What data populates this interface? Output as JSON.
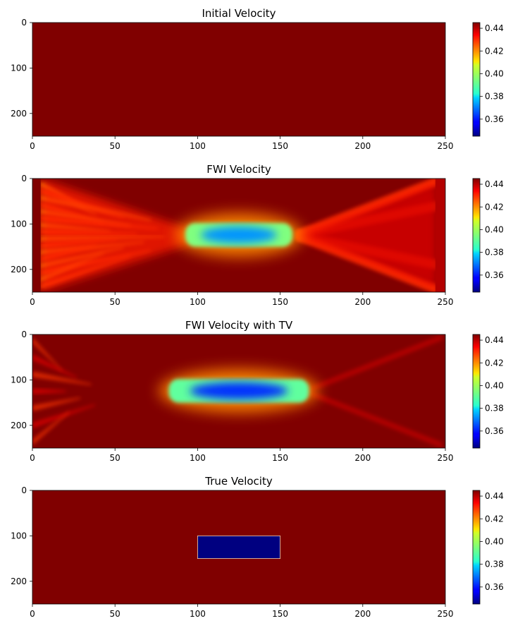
{
  "chart_data": [
    {
      "type": "heatmap",
      "title": "Initial Velocity",
      "xticks": [
        0,
        50,
        100,
        150,
        200,
        250
      ],
      "yticks": [
        0,
        100,
        200
      ],
      "xlim": [
        0,
        250
      ],
      "ylim": [
        250,
        0
      ],
      "colormap": "jet",
      "clim": [
        0.345,
        0.445
      ],
      "colorbar_ticks": [
        "0.36",
        "0.38",
        "0.40",
        "0.42",
        "0.44"
      ],
      "field": {
        "background": 0.445
      }
    },
    {
      "type": "heatmap",
      "title": "FWI Velocity",
      "xticks": [
        0,
        50,
        100,
        150,
        200,
        250
      ],
      "yticks": [
        0,
        100,
        200
      ],
      "xlim": [
        0,
        250
      ],
      "ylim": [
        250,
        0
      ],
      "colormap": "jet",
      "clim": [
        0.345,
        0.445
      ],
      "colorbar_ticks": [
        "0.36",
        "0.38",
        "0.40",
        "0.42",
        "0.44"
      ],
      "field": {
        "background": 0.445,
        "anomaly": {
          "x": [
            90,
            160
          ],
          "y": [
            98,
            150
          ],
          "core_value": 0.372,
          "edge_value": 0.395
        },
        "left_streaks": {
          "x": [
            5,
            80
          ],
          "y_span": [
            0,
            250
          ],
          "value": 0.425
        },
        "right_fan": {
          "x": [
            160,
            245
          ],
          "value": 0.428
        }
      }
    },
    {
      "type": "heatmap",
      "title": "FWI Velocity with TV",
      "xticks": [
        0,
        50,
        100,
        150,
        200,
        250
      ],
      "yticks": [
        0,
        100,
        200
      ],
      "xlim": [
        0,
        250
      ],
      "ylim": [
        250,
        0
      ],
      "colormap": "jet",
      "clim": [
        0.345,
        0.445
      ],
      "colorbar_ticks": [
        "0.36",
        "0.38",
        "0.40",
        "0.42",
        "0.44"
      ],
      "field": {
        "background": 0.445,
        "anomaly": {
          "x": [
            80,
            170
          ],
          "y": [
            98,
            150
          ],
          "core_value": 0.362,
          "edge_value": 0.392
        },
        "left_streaks": {
          "x": [
            0,
            40
          ],
          "value": 0.435
        },
        "right_fan": {
          "x": [
            165,
            248
          ],
          "value": 0.44
        }
      }
    },
    {
      "type": "heatmap",
      "title": "True Velocity",
      "xticks": [
        0,
        50,
        100,
        150,
        200,
        250
      ],
      "yticks": [
        0,
        100,
        200
      ],
      "xlim": [
        0,
        250
      ],
      "ylim": [
        250,
        0
      ],
      "colormap": "jet",
      "clim": [
        0.345,
        0.445
      ],
      "colorbar_ticks": [
        "0.36",
        "0.38",
        "0.40",
        "0.42",
        "0.44"
      ],
      "field": {
        "background": 0.445,
        "anomaly": {
          "x": [
            100,
            150
          ],
          "y": [
            100,
            150
          ],
          "value": 0.345
        }
      }
    }
  ]
}
